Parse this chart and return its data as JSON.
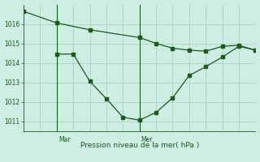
{
  "title": "Pression niveau de la mer( hPa )",
  "bg_color": "#ceeee4",
  "grid_color": "#aed8cc",
  "line_color": "#1a5c1a",
  "ylim": [
    1010.5,
    1017.0
  ],
  "yticks": [
    1011,
    1012,
    1013,
    1014,
    1015,
    1016
  ],
  "xlim": [
    0,
    14
  ],
  "vline_x": [
    2,
    7
  ],
  "vline_labels": [
    "Mar",
    "Mer"
  ],
  "line1_x": [
    0,
    2,
    4,
    7,
    8,
    9,
    10,
    11,
    12,
    13,
    14
  ],
  "line1_y": [
    1016.65,
    1016.05,
    1015.7,
    1015.3,
    1015.0,
    1014.75,
    1014.65,
    1014.6,
    1014.85,
    1014.9,
    1014.65
  ],
  "line2_x": [
    2,
    3,
    4,
    5,
    6,
    7,
    8,
    9,
    10,
    11,
    12,
    13,
    14
  ],
  "line2_y": [
    1014.45,
    1014.45,
    1013.05,
    1012.15,
    1011.2,
    1011.05,
    1011.45,
    1012.2,
    1013.35,
    1013.8,
    1014.3,
    1014.85,
    1014.65
  ]
}
